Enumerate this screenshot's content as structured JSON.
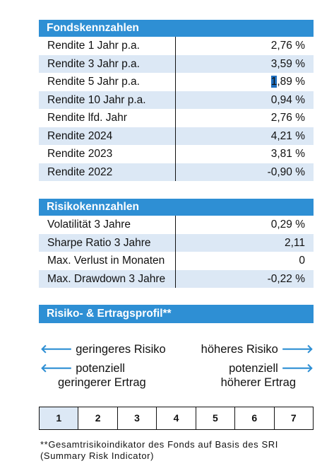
{
  "top_fragment": "",
  "fonds": {
    "title": "Fondskennzahlen",
    "rows": [
      {
        "label": "Rendite 1 Jahr p.a.",
        "value": "2,76 %"
      },
      {
        "label": "Rendite 3 Jahr p.a.",
        "value": "3,59 %"
      },
      {
        "label": "Rendite 5 Jahr p.a.",
        "value_pre": "1",
        "value_post": ",89 %"
      },
      {
        "label": "Rendite 10 Jahr p.a.",
        "value": "0,94 %"
      },
      {
        "label": "Rendite lfd. Jahr",
        "value": "2,76 %"
      },
      {
        "label": "Rendite 2024",
        "value": "4,21 %"
      },
      {
        "label": "Rendite 2023",
        "value": "3,81 %"
      },
      {
        "label": "Rendite 2022",
        "value": "-0,90 %"
      }
    ]
  },
  "risiko": {
    "title": "Risikokennzahlen",
    "rows": [
      {
        "label": "Volatilität 3 Jahre",
        "value": "0,29 %"
      },
      {
        "label": "Sharpe Ratio 3 Jahre",
        "value": "2,11"
      },
      {
        "label": "Max. Verlust in Monaten",
        "value": "0"
      },
      {
        "label": "Max. Drawdown 3 Jahre",
        "value": "-0,22 %"
      }
    ]
  },
  "profil": {
    "title": "Risiko- & Ertragsprofil**",
    "left_risk": "geringeres Risiko",
    "right_risk": "höheres Risiko",
    "left_ertrag_1": "potenziell",
    "left_ertrag_2": "geringerer Ertrag",
    "right_ertrag_1": "potenziell",
    "right_ertrag_2": "höherer Ertrag",
    "left_arrow": "🡐",
    "right_arrow": "🡒",
    "scale": [
      "1",
      "2",
      "3",
      "4",
      "5",
      "6",
      "7"
    ],
    "selected": "1"
  },
  "footnote_1": "**Gesamtrisikoindikator des Fonds auf Basis des SRI",
  "footnote_2": "(Summary Risk Indicator)",
  "colors": {
    "accent": "#2e8fd4",
    "row_shade": "#dce8f5"
  }
}
